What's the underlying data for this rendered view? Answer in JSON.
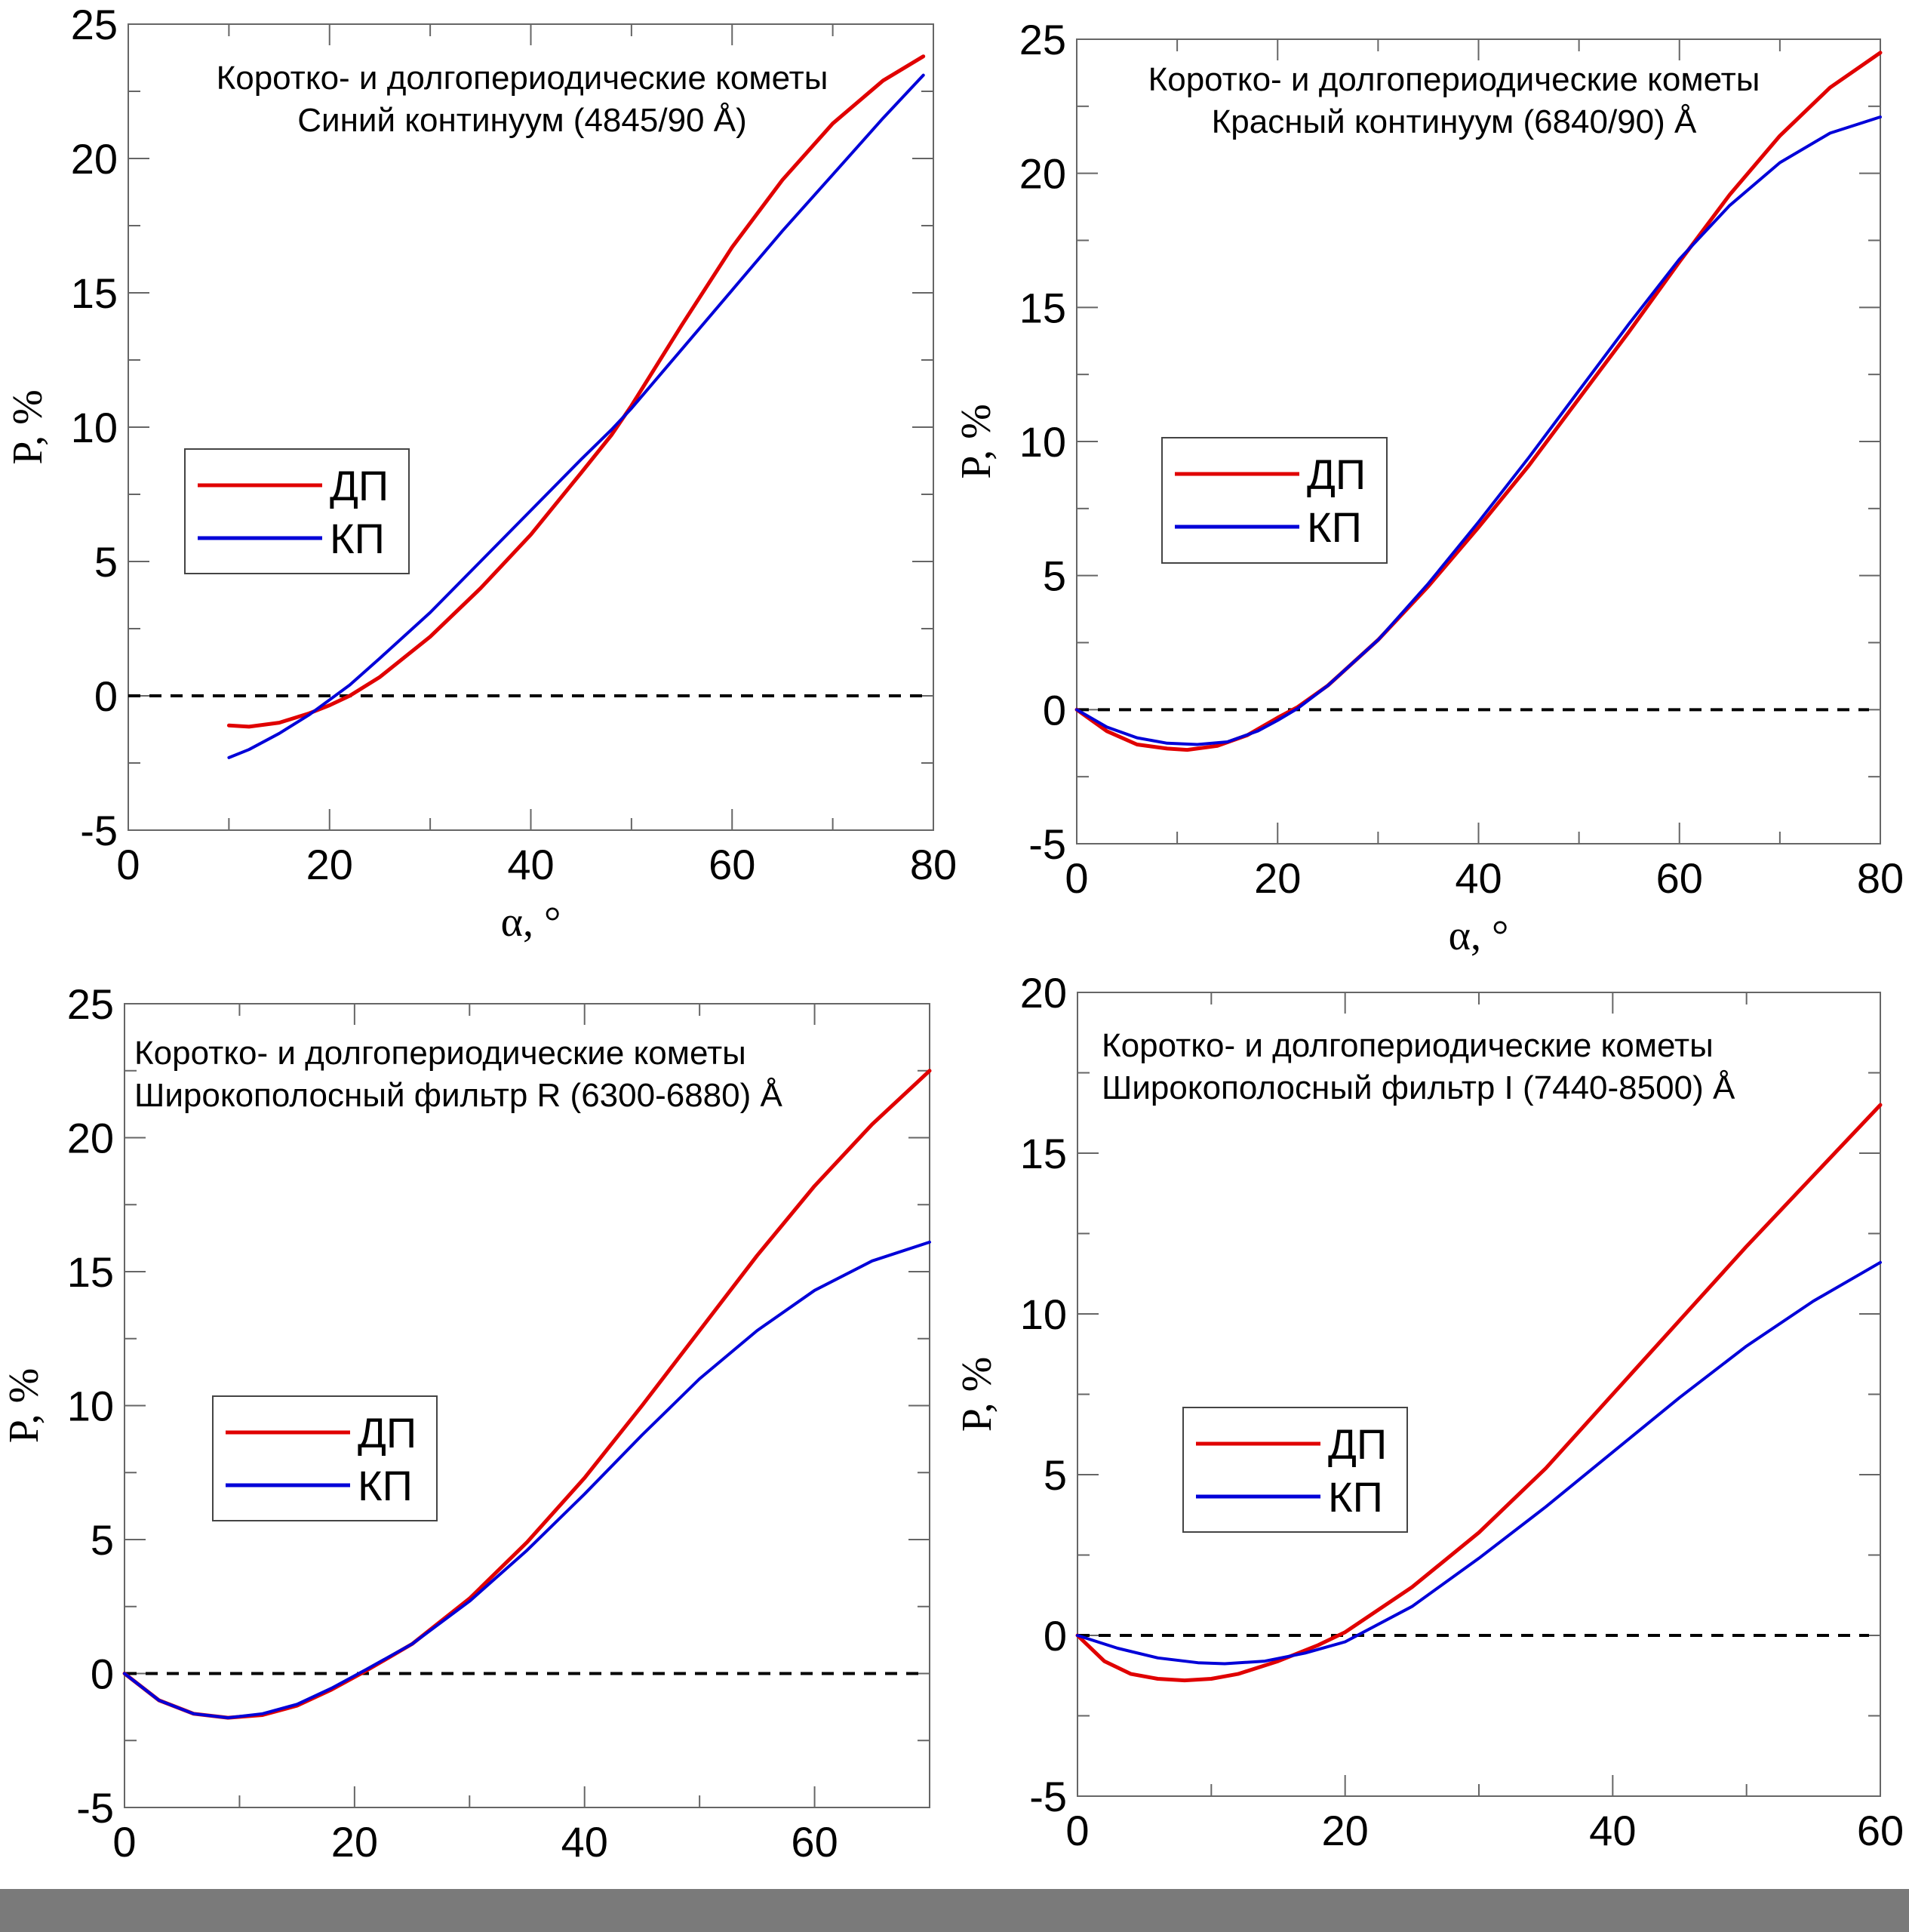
{
  "colors": {
    "dp": "#e00000",
    "kp": "#0000d8",
    "zero_line": "#000000",
    "bottom_bar": "#7a7a7a"
  },
  "chart_data": [
    {
      "type": "line",
      "title_lines": [
        "Коротко- и долгопериодические кометы",
        "Синий континуум (4845/90 Å)"
      ],
      "xlabel": "α, °",
      "ylabel": "P, %",
      "xlim": [
        0,
        80
      ],
      "ylim": [
        -5,
        25
      ],
      "xticks": [
        0,
        20,
        40,
        60,
        80
      ],
      "yticks": [
        -5,
        0,
        5,
        10,
        15,
        20,
        25
      ],
      "zero_line": true,
      "legend": "center-left",
      "series": [
        {
          "name": "ДП",
          "color": "#e00000",
          "x": [
            10,
            12,
            15,
            18,
            20,
            22,
            25,
            30,
            35,
            40,
            45,
            48,
            50,
            55,
            60,
            65,
            70,
            75,
            79
          ],
          "y": [
            -1.1,
            -1.15,
            -1.0,
            -0.65,
            -0.35,
            0.0,
            0.7,
            2.2,
            4.0,
            6.0,
            8.3,
            9.7,
            10.8,
            13.8,
            16.7,
            19.2,
            21.3,
            22.9,
            23.8
          ]
        },
        {
          "name": "КП",
          "color": "#0000d8",
          "x": [
            10,
            12,
            15,
            18,
            20,
            22,
            25,
            30,
            35,
            40,
            45,
            48,
            50,
            55,
            60,
            65,
            70,
            75,
            79
          ],
          "y": [
            -2.3,
            -2.0,
            -1.4,
            -0.7,
            -0.15,
            0.4,
            1.4,
            3.1,
            5.0,
            6.9,
            8.8,
            9.9,
            10.7,
            12.9,
            15.1,
            17.3,
            19.4,
            21.5,
            23.1
          ]
        }
      ]
    },
    {
      "type": "line",
      "title_lines": [
        "Коротко- и долгопериодические кометы",
        "Красный континуум (6840/90) Å"
      ],
      "xlabel": "α, °",
      "ylabel": "P, %",
      "xlim": [
        0,
        80
      ],
      "ylim": [
        -5,
        25
      ],
      "xticks": [
        0,
        20,
        40,
        60,
        80
      ],
      "yticks": [
        -5,
        0,
        5,
        10,
        15,
        20,
        25
      ],
      "zero_line": true,
      "legend": "center-left",
      "series": [
        {
          "name": "ДП",
          "color": "#e00000",
          "x": [
            0,
            3,
            6,
            9,
            11,
            14,
            17,
            20,
            22,
            25,
            30,
            35,
            40,
            45,
            50,
            55,
            60,
            65,
            70,
            75,
            80
          ],
          "y": [
            0,
            -0.8,
            -1.3,
            -1.45,
            -1.5,
            -1.35,
            -0.95,
            -0.3,
            0.1,
            0.9,
            2.6,
            4.6,
            6.8,
            9.1,
            11.6,
            14.1,
            16.7,
            19.2,
            21.4,
            23.2,
            24.5
          ]
        },
        {
          "name": "КП",
          "color": "#0000d8",
          "x": [
            0,
            3,
            6,
            9,
            12,
            15,
            18,
            20,
            22,
            25,
            30,
            35,
            40,
            45,
            50,
            55,
            60,
            65,
            70,
            75,
            80
          ],
          "y": [
            0,
            -0.65,
            -1.05,
            -1.25,
            -1.3,
            -1.2,
            -0.8,
            -0.4,
            0.05,
            0.9,
            2.6,
            4.7,
            7.0,
            9.4,
            11.9,
            14.4,
            16.8,
            18.8,
            20.4,
            21.5,
            22.1
          ]
        }
      ]
    },
    {
      "type": "line",
      "title_lines": [
        "Коротко- и долгопериодические кометы",
        "Широкополосный фильтр R (6300-6880) Å"
      ],
      "xlabel": "",
      "ylabel": "P, %",
      "xlim": [
        0,
        70
      ],
      "ylim": [
        -5,
        25
      ],
      "xticks": [
        0,
        20,
        40,
        60
      ],
      "yticks": [
        -5,
        0,
        5,
        10,
        15,
        20,
        25
      ],
      "zero_line": true,
      "legend": "center-left",
      "series": [
        {
          "name": "ДП",
          "color": "#e00000",
          "x": [
            0,
            3,
            6,
            9,
            12,
            15,
            18,
            21,
            25,
            30,
            35,
            40,
            45,
            50,
            55,
            60,
            65,
            70
          ],
          "y": [
            0,
            -1.0,
            -1.5,
            -1.65,
            -1.55,
            -1.2,
            -0.6,
            0.1,
            1.1,
            2.8,
            4.9,
            7.3,
            10.0,
            12.8,
            15.6,
            18.2,
            20.5,
            22.5
          ]
        },
        {
          "name": "КП",
          "color": "#0000d8",
          "x": [
            0,
            3,
            6,
            9,
            12,
            15,
            18,
            21,
            25,
            30,
            35,
            40,
            45,
            50,
            55,
            60,
            65,
            70
          ],
          "y": [
            0,
            -1.0,
            -1.5,
            -1.65,
            -1.5,
            -1.15,
            -0.55,
            0.15,
            1.1,
            2.7,
            4.6,
            6.7,
            8.9,
            11.0,
            12.8,
            14.3,
            15.4,
            16.1
          ]
        }
      ]
    },
    {
      "type": "line",
      "title_lines": [
        "Коротко- и долгопериодические кометы",
        "Широкополосный фильтр I (7440-8500) Å"
      ],
      "xlabel": "",
      "ylabel": "P, %",
      "xlim": [
        0,
        60
      ],
      "ylim": [
        -5,
        20
      ],
      "xticks": [
        0,
        20,
        40,
        60
      ],
      "yticks": [
        -5,
        0,
        5,
        10,
        15,
        20
      ],
      "zero_line": true,
      "legend": "center-left",
      "series": [
        {
          "name": "ДП",
          "color": "#e00000",
          "x": [
            0,
            2,
            4,
            6,
            8,
            10,
            12,
            15,
            18,
            20,
            25,
            30,
            35,
            40,
            45,
            50,
            55,
            60
          ],
          "y": [
            0,
            -0.8,
            -1.2,
            -1.35,
            -1.4,
            -1.35,
            -1.2,
            -0.8,
            -0.3,
            0.1,
            1.5,
            3.2,
            5.2,
            7.5,
            9.8,
            12.1,
            14.3,
            16.5
          ]
        },
        {
          "name": "КП",
          "color": "#0000d8",
          "x": [
            0,
            3,
            6,
            9,
            11,
            14,
            17,
            20,
            25,
            30,
            35,
            40,
            45,
            50,
            55,
            60
          ],
          "y": [
            0,
            -0.4,
            -0.7,
            -0.85,
            -0.88,
            -0.8,
            -0.55,
            -0.2,
            0.9,
            2.4,
            4.0,
            5.7,
            7.4,
            9.0,
            10.4,
            11.6
          ]
        }
      ]
    }
  ]
}
